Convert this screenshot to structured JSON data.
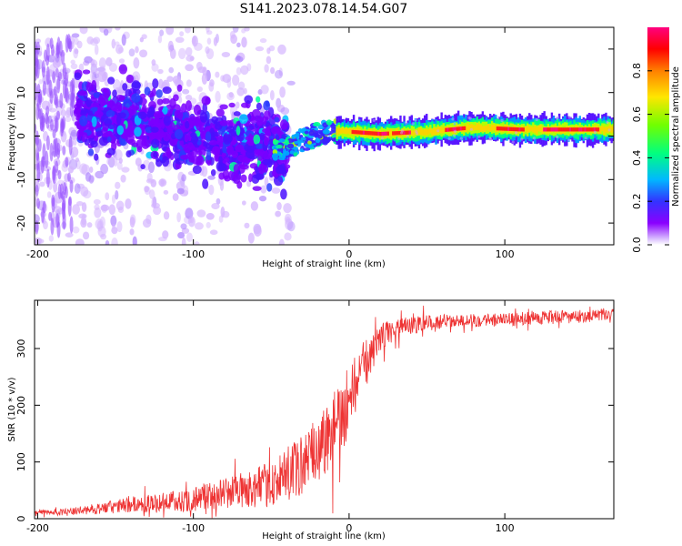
{
  "title": "S141.2023.078.14.54.G07",
  "chart_data": [
    {
      "type": "heatmap",
      "name": "spectrogram",
      "xlabel": "Height of straight line (km)",
      "ylabel": "Frequency (Hz)",
      "xlim": [
        -202,
        170
      ],
      "ylim": [
        -25,
        25
      ],
      "xticks": [
        -200,
        -100,
        0,
        100
      ],
      "yticks": [
        -20,
        -10,
        0,
        10,
        20
      ],
      "colorbar": {
        "label": "Normalized spectral amplitude",
        "range": [
          0,
          1
        ],
        "ticks": [
          "0.0",
          "0.2",
          "0.4",
          "0.6",
          "0.8"
        ],
        "colors": [
          "#ffffff",
          "#c9a3ff",
          "#8000ff",
          "#3030ff",
          "#00c0ff",
          "#00ff80",
          "#80ff00",
          "#ffe000",
          "#ff8000",
          "#ff0000",
          "#ff0080"
        ]
      },
      "ridge": {
        "description": "central frequency track",
        "x": [
          -170,
          -140,
          -110,
          -80,
          -60,
          -45,
          -30,
          -15,
          0,
          20,
          50,
          80,
          110,
          140,
          170
        ],
        "y": [
          5,
          4,
          1,
          -2,
          -1,
          -3,
          -1,
          1,
          1,
          0.5,
          1,
          2,
          1.5,
          1.5,
          1.5
        ]
      }
    },
    {
      "type": "line",
      "name": "snr",
      "xlabel": "Height of straight line (km)",
      "ylabel": "SNR (10 * v/v)",
      "xlim": [
        -202,
        170
      ],
      "ylim": [
        0,
        385
      ],
      "xticks": [
        -200,
        -100,
        0,
        100
      ],
      "yticks": [
        0,
        100,
        200,
        300
      ],
      "color": "#ee3333",
      "series": [
        {
          "name": "SNR",
          "x": [
            -202,
            -180,
            -160,
            -140,
            -120,
            -100,
            -80,
            -60,
            -50,
            -40,
            -30,
            -20,
            -10,
            0,
            10,
            20,
            30,
            50,
            70,
            90,
            100,
            120,
            140,
            170
          ],
          "y": [
            10,
            12,
            18,
            25,
            28,
            35,
            45,
            55,
            60,
            75,
            95,
            120,
            160,
            210,
            270,
            320,
            335,
            345,
            350,
            350,
            350,
            355,
            355,
            360
          ],
          "noise_amplitude": [
            5,
            6,
            10,
            14,
            18,
            22,
            28,
            35,
            40,
            48,
            55,
            65,
            70,
            65,
            45,
            25,
            18,
            14,
            12,
            12,
            12,
            12,
            12,
            10
          ]
        }
      ]
    }
  ]
}
